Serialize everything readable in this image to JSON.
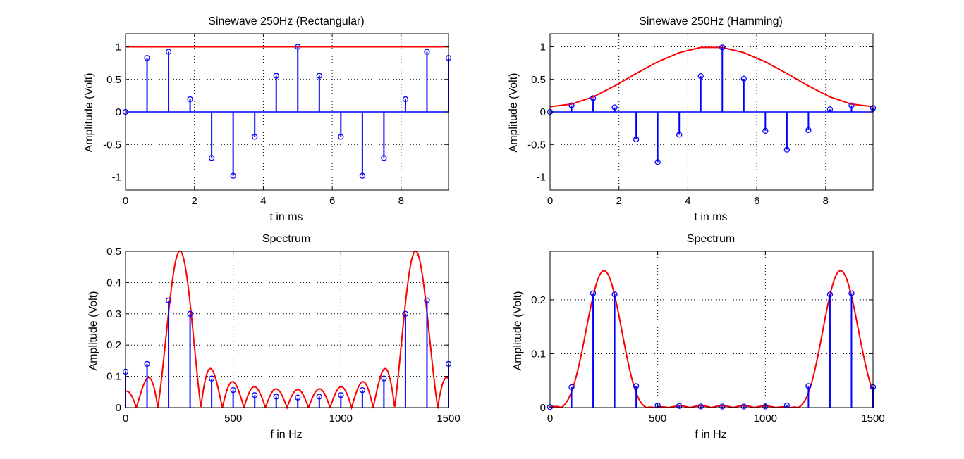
{
  "figure": {
    "background": "#ffffff"
  },
  "colors": {
    "stem": "#0000ff",
    "curve": "#ff0000",
    "grid": "#000000"
  },
  "chart_data": [
    {
      "type": "stem",
      "title": "Sinewave 250Hz (Rectangular)",
      "xlabel": "t in ms",
      "ylabel": "Amplitude (Volt)",
      "xlim": [
        0,
        9.375
      ],
      "ylim": [
        -1.2,
        1.2
      ],
      "xticks": [
        0,
        2,
        4,
        6,
        8
      ],
      "yticks": [
        -1,
        -0.5,
        0,
        0.5,
        1
      ],
      "xtick_labels": [
        "0",
        "2",
        "4",
        "6",
        "8"
      ],
      "ytick_labels": [
        "-1",
        "-0.5",
        "0",
        "0.5",
        "1"
      ],
      "grid": true,
      "samples": {
        "x": [
          0,
          0.625,
          1.25,
          1.875,
          2.5,
          3.125,
          3.75,
          4.375,
          5.0,
          5.625,
          6.25,
          6.875,
          7.5,
          8.125,
          8.75,
          9.375
        ],
        "y": [
          0,
          0.83,
          0.924,
          0.195,
          -0.707,
          -0.981,
          -0.383,
          0.556,
          1.0,
          0.556,
          -0.383,
          -0.981,
          -0.707,
          0.195,
          0.924,
          0.83
        ]
      },
      "envelope": {
        "x": [
          0,
          9.375
        ],
        "y": [
          1,
          1
        ]
      }
    },
    {
      "type": "stem",
      "title": "Sinewave 250Hz (Hamming)",
      "xlabel": "t in ms",
      "ylabel": "Amplitude (Volt)",
      "xlim": [
        0,
        9.375
      ],
      "ylim": [
        -1.2,
        1.2
      ],
      "xticks": [
        0,
        2,
        4,
        6,
        8
      ],
      "yticks": [
        -1,
        -0.5,
        0,
        0.5,
        1
      ],
      "xtick_labels": [
        "0",
        "2",
        "4",
        "6",
        "8"
      ],
      "ytick_labels": [
        "-1",
        "-0.5",
        "0",
        "0.5",
        "1"
      ],
      "grid": true,
      "samples": {
        "x": [
          0,
          0.625,
          1.25,
          1.875,
          2.5,
          3.125,
          3.75,
          4.375,
          5.0,
          5.625,
          6.25,
          6.875,
          7.5,
          8.125,
          8.75,
          9.375
        ],
        "y": [
          0,
          0.1,
          0.21,
          0.07,
          -0.42,
          -0.77,
          -0.35,
          0.55,
          0.99,
          0.51,
          -0.29,
          -0.58,
          -0.28,
          0.04,
          0.1,
          0.06
        ]
      },
      "envelope": {
        "x": [
          0,
          0.625,
          1.25,
          1.875,
          2.5,
          3.125,
          3.75,
          4.375,
          5.0,
          5.625,
          6.25,
          6.875,
          7.5,
          8.125,
          8.75,
          9.375
        ],
        "y": [
          0.08,
          0.12,
          0.23,
          0.4,
          0.59,
          0.77,
          0.91,
          0.99,
          0.99,
          0.91,
          0.77,
          0.59,
          0.4,
          0.23,
          0.12,
          0.08
        ]
      }
    },
    {
      "type": "stem",
      "title": "Spectrum",
      "xlabel": "f in Hz",
      "ylabel": "Amplitude (Volt)",
      "xlim": [
        0,
        1500
      ],
      "ylim": [
        0,
        0.5
      ],
      "xticks": [
        0,
        500,
        1000,
        1500
      ],
      "yticks": [
        0,
        0.1,
        0.2,
        0.3,
        0.4,
        0.5
      ],
      "xtick_labels": [
        "0",
        "500",
        "1000",
        "1500"
      ],
      "ytick_labels": [
        "0",
        "0.1",
        "0.2",
        "0.3",
        "0.4",
        "0.5"
      ],
      "grid": true,
      "samples": {
        "x": [
          0,
          100,
          200,
          300,
          400,
          500,
          600,
          700,
          800,
          900,
          1000,
          1100,
          1200,
          1300,
          1400,
          1500
        ],
        "y": [
          0.115,
          0.14,
          0.343,
          0.3,
          0.093,
          0.056,
          0.04,
          0.035,
          0.032,
          0.035,
          0.04,
          0.056,
          0.093,
          0.3,
          0.343,
          0.14
        ]
      },
      "curve": {
        "kind": "rect-window-spectrum",
        "N": 16,
        "T_ms": 10,
        "f0": 250,
        "fs": 1600,
        "x_range": [
          0,
          1500
        ]
      }
    },
    {
      "type": "stem",
      "title": "Spectrum",
      "xlabel": "f in Hz",
      "ylabel": "Amplitude (Volt)",
      "xlim": [
        0,
        1500
      ],
      "ylim": [
        0,
        0.29
      ],
      "xticks": [
        0,
        500,
        1000,
        1500
      ],
      "yticks": [
        0,
        0.1,
        0.2
      ],
      "xtick_labels": [
        "0",
        "500",
        "1000",
        "1500"
      ],
      "ytick_labels": [
        "0",
        "0.1",
        "0.2"
      ],
      "grid": true,
      "samples": {
        "x": [
          0,
          100,
          200,
          300,
          400,
          500,
          600,
          700,
          800,
          900,
          1000,
          1100,
          1200,
          1300,
          1400,
          1500
        ],
        "y": [
          0.001,
          0.038,
          0.212,
          0.21,
          0.04,
          0.004,
          0.003,
          0.002,
          0.002,
          0.002,
          0.002,
          0.004,
          0.04,
          0.21,
          0.212,
          0.038
        ]
      },
      "curve": {
        "kind": "hamming-window-spectrum",
        "N": 16,
        "T_ms": 10,
        "f0": 250,
        "fs": 1600,
        "peak": 0.254,
        "x_range": [
          0,
          1500
        ]
      }
    }
  ]
}
